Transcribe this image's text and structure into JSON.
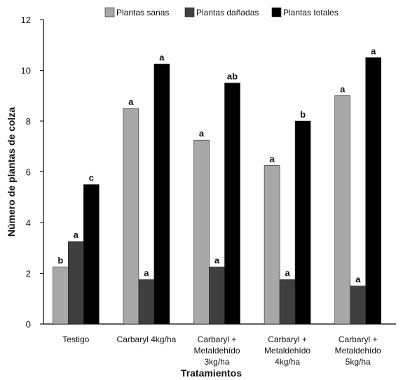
{
  "chart_data": {
    "type": "bar",
    "categories": [
      [
        "Testigo"
      ],
      [
        "Carbaryl 4kg/ha"
      ],
      [
        "Carbaryl +",
        "Metaldehído",
        "3kg/ha"
      ],
      [
        "Carbaryl +",
        "Metaldehído",
        "4kg/ha"
      ],
      [
        "Carbaryl +",
        "Metaldehído",
        "5kg/ha"
      ]
    ],
    "series": [
      {
        "name": "Plantas sanas",
        "color": "#a8a8a8",
        "values": [
          2.25,
          8.5,
          7.25,
          6.25,
          9.0
        ],
        "labels": [
          "b",
          "a",
          "a",
          "a",
          "a"
        ]
      },
      {
        "name": "Plantas dañadas",
        "color": "#3f3f3f",
        "values": [
          3.25,
          1.75,
          2.25,
          1.75,
          1.5
        ],
        "labels": [
          "a",
          "a",
          "a",
          "a",
          "a"
        ]
      },
      {
        "name": "Plantas totales",
        "color": "#000000",
        "values": [
          5.5,
          10.25,
          9.5,
          8.0,
          10.5
        ],
        "labels": [
          "c",
          "a",
          "ab",
          "b",
          "a"
        ]
      }
    ],
    "xlabel": "Tratamientos",
    "ylabel": "Número de plantas de colza",
    "ylim": [
      0,
      12
    ],
    "yticks": [
      0,
      2,
      4,
      6,
      8,
      10,
      12
    ],
    "grid": false,
    "legend_position": "top"
  }
}
